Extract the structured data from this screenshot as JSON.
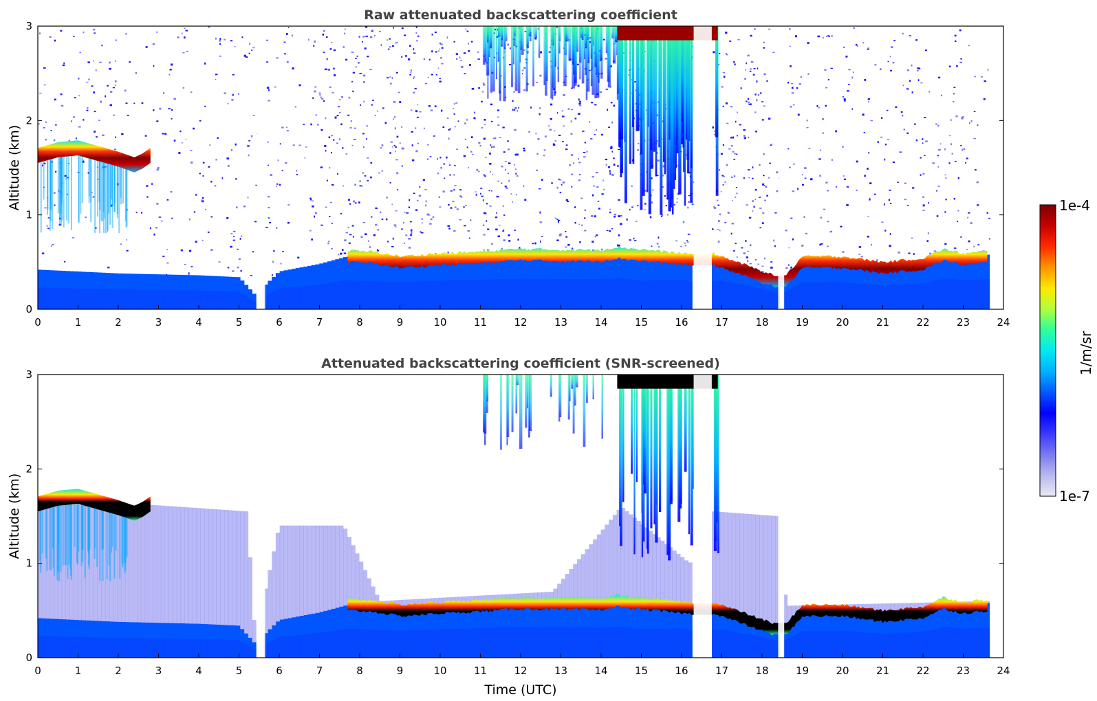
{
  "chart_data": [
    {
      "type": "heatmap",
      "title": "Raw attenuated backscattering coefficient",
      "xlabel": "",
      "ylabel": "Altitude (km)",
      "xlim": [
        0,
        24
      ],
      "ylim": [
        0,
        3
      ],
      "xticks": [
        "0",
        "1",
        "2",
        "3",
        "4",
        "5",
        "6",
        "7",
        "8",
        "9",
        "10",
        "11",
        "12",
        "13",
        "14",
        "15",
        "16",
        "17",
        "18",
        "19",
        "20",
        "21",
        "22",
        "23",
        "24"
      ],
      "yticks": [
        "0",
        "1",
        "2",
        "3"
      ],
      "data_end_hour": 23.65,
      "features": {
        "boundary_layer_top_km": [
          [
            0,
            0.42
          ],
          [
            1,
            0.4
          ],
          [
            2,
            0.38
          ],
          [
            3,
            0.37
          ],
          [
            4,
            0.36
          ],
          [
            5,
            0.34
          ],
          [
            5.4,
            0.15
          ],
          [
            6,
            0.4
          ],
          [
            7,
            0.48
          ],
          [
            7.7,
            0.56
          ],
          [
            8,
            0.55
          ],
          [
            9,
            0.52
          ],
          [
            10,
            0.55
          ],
          [
            11,
            0.57
          ],
          [
            12,
            0.59
          ],
          [
            13,
            0.58
          ],
          [
            14,
            0.58
          ],
          [
            14.5,
            0.6
          ],
          [
            15,
            0.55
          ],
          [
            16,
            0.57
          ],
          [
            16.3,
            0.52
          ],
          [
            17,
            0.55
          ],
          [
            18,
            0.4
          ],
          [
            18.5,
            0.3
          ],
          [
            19,
            0.52
          ],
          [
            20,
            0.52
          ],
          [
            21,
            0.46
          ],
          [
            22,
            0.5
          ],
          [
            22.6,
            0.6
          ],
          [
            23,
            0.56
          ],
          [
            23.65,
            0.58
          ]
        ],
        "aerosol_layer_km": [
          [
            7.7,
            0.56
          ],
          [
            8.3,
            0.55
          ],
          [
            8.6,
            0.53
          ],
          [
            9,
            0.5
          ],
          [
            10,
            0.53
          ],
          [
            11,
            0.55
          ],
          [
            12,
            0.58
          ],
          [
            13,
            0.57
          ],
          [
            14,
            0.57
          ],
          [
            14.4,
            0.6
          ],
          [
            16.3,
            0.52
          ],
          [
            16.8,
            0.53
          ],
          [
            18.3,
            0.3
          ],
          [
            18.6,
            0.3
          ],
          [
            19,
            0.5
          ],
          [
            20,
            0.5
          ],
          [
            21,
            0.44
          ],
          [
            22,
            0.48
          ],
          [
            22.5,
            0.58
          ],
          [
            23,
            0.53
          ],
          [
            23.65,
            0.56
          ]
        ],
        "elevated_layer_km": [
          [
            0,
            1.62
          ],
          [
            0.5,
            1.68
          ],
          [
            1,
            1.7
          ],
          [
            1.5,
            1.64
          ],
          [
            2,
            1.58
          ],
          [
            2.4,
            1.52
          ],
          [
            2.6,
            1.56
          ],
          [
            2.8,
            1.62
          ]
        ],
        "high_cloud_hours": [
          11,
          16.9
        ],
        "dense_cloud_top_hours": [
          14.4,
          16.9
        ],
        "data_gaps_hours": [
          [
            5.45,
            5.65
          ],
          [
            16.3,
            16.75
          ],
          [
            18.4,
            18.55
          ]
        ]
      }
    },
    {
      "type": "heatmap",
      "title": "Attenuated backscattering coefficient (SNR-screened)",
      "xlabel": "Time (UTC)",
      "ylabel": "Altitude (km)",
      "xlim": [
        0,
        24
      ],
      "ylim": [
        0,
        3
      ],
      "xticks": [
        "0",
        "1",
        "2",
        "3",
        "4",
        "5",
        "6",
        "7",
        "8",
        "9",
        "10",
        "11",
        "12",
        "13",
        "14",
        "15",
        "16",
        "17",
        "18",
        "19",
        "20",
        "21",
        "22",
        "23",
        "24"
      ],
      "yticks": [
        "0",
        "1",
        "2",
        "3"
      ],
      "data_end_hour": 23.65,
      "screened_signal_top_km": [
        [
          0,
          1.62
        ],
        [
          2.8,
          1.62
        ],
        [
          5.2,
          1.55
        ],
        [
          5.4,
          0.2
        ],
        [
          6,
          1.4
        ],
        [
          7.6,
          1.4
        ],
        [
          8.5,
          0.6
        ],
        [
          12.8,
          0.7
        ],
        [
          14.5,
          1.6
        ],
        [
          16.2,
          1.0
        ],
        [
          16.8,
          1.55
        ],
        [
          18.4,
          1.5
        ],
        [
          18.6,
          0.55
        ],
        [
          23.65,
          0.6
        ]
      ]
    }
  ],
  "colorbar": {
    "label": "1/m/sr",
    "max_label": "1e-4",
    "min_label": "1e-7",
    "scale": "log",
    "colormap": [
      "#eaeaf6",
      "#b9b9ee",
      "#7a7aef",
      "#3a3aff",
      "#0000ff",
      "#005aff",
      "#00b2ff",
      "#00eaf0",
      "#30ff9a",
      "#b0ff3a",
      "#ffe800",
      "#ff9400",
      "#ff2a00",
      "#c40000",
      "#800000"
    ]
  }
}
